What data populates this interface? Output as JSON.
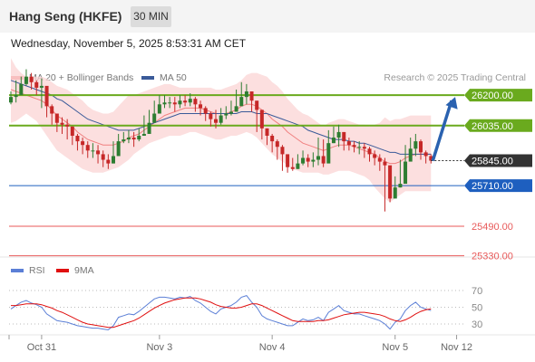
{
  "header": {
    "title": "Hang Seng (HKFE)",
    "timeframe": "30 MIN"
  },
  "datetime": "Wednesday, November 5, 2025 8:53:31 AM CET",
  "legend": {
    "ma20": {
      "label": "MA 20 + Bollinger Bands",
      "color": "#f08080"
    },
    "ma50": {
      "label": "MA 50",
      "color": "#3a5a99"
    }
  },
  "copyright": "Research © 2025 Trading Central",
  "rsi_legend": {
    "rsi": {
      "label": "RSI",
      "color": "#5b7fd6"
    },
    "ma9": {
      "label": "9MA",
      "color": "#e01010"
    }
  },
  "colors": {
    "up": "#2e7d32",
    "down": "#c62828",
    "resistance": "#6aaa1e",
    "pivot": "#1e5fbf",
    "support": "#e85a5a",
    "arrow": "#2a62b0",
    "last": "#333333"
  },
  "chart_data": [
    {
      "type": "candlestick",
      "title": "",
      "ylim": [
        25300,
        26500
      ],
      "xticks": [
        "Oct 31",
        "Nov 3",
        "Nov 4",
        "Nov 5",
        "Nov 12"
      ],
      "levels": [
        {
          "value": 26200,
          "label": "26200.00",
          "kind": "resistance"
        },
        {
          "value": 26035,
          "label": "26035.00",
          "kind": "resistance"
        },
        {
          "value": 25710,
          "label": "25710.00",
          "kind": "pivot"
        },
        {
          "value": 25490,
          "label": "25490.00",
          "kind": "support"
        },
        {
          "value": 25330,
          "label": "25330.00",
          "kind": "support"
        }
      ],
      "last_price": {
        "value": 25845,
        "label": "25845.00"
      },
      "target": {
        "from": 25845,
        "to": 26200
      },
      "close": [
        26190,
        26200,
        26260,
        26300,
        26270,
        26240,
        26250,
        26140,
        26100,
        26050,
        26040,
        26030,
        25980,
        25950,
        25930,
        25900,
        25900,
        25880,
        25850,
        25830,
        25870,
        25950,
        25960,
        25970,
        25960,
        25980,
        25990,
        26050,
        26100,
        26150,
        26160,
        26160,
        26150,
        26170,
        26160,
        26180,
        26150,
        26130,
        26100,
        26070,
        26050,
        26090,
        26100,
        26110,
        26140,
        26190,
        26220,
        26170,
        26120,
        26020,
        25980,
        25950,
        25920,
        25880,
        25810,
        25800,
        25830,
        25860,
        25840,
        25850,
        25870,
        25830,
        25940,
        25970,
        26000,
        25950,
        25930,
        25920,
        25920,
        25910,
        25880,
        25860,
        25840,
        25820,
        25640,
        25700,
        25720,
        25840,
        25910,
        25950,
        25890,
        25870,
        25845
      ],
      "high": [
        26220,
        26280,
        26300,
        26340,
        26320,
        26280,
        26290,
        26210,
        26150,
        26100,
        26080,
        26070,
        26020,
        25990,
        25970,
        25950,
        25940,
        25930,
        25900,
        25880,
        25950,
        25990,
        26000,
        26010,
        26000,
        26020,
        26090,
        26120,
        26170,
        26200,
        26200,
        26190,
        26190,
        26200,
        26200,
        26210,
        26190,
        26170,
        26140,
        26110,
        26120,
        26130,
        26140,
        26170,
        26230,
        26270,
        26260,
        26210,
        26160,
        26060,
        26020,
        25990,
        25960,
        25930,
        25860,
        25860,
        25880,
        25900,
        25880,
        25890,
        25970,
        25960,
        26010,
        26030,
        26040,
        26000,
        25970,
        25950,
        25950,
        25940,
        25920,
        25900,
        25880,
        25860,
        25760,
        25760,
        25850,
        25930,
        25970,
        25990,
        25960,
        25900,
        25880
      ],
      "low": [
        26150,
        26160,
        26220,
        26250,
        26230,
        26200,
        26130,
        26080,
        26040,
        26000,
        25990,
        25960,
        25930,
        25900,
        25880,
        25860,
        25860,
        25830,
        25810,
        25800,
        25830,
        25920,
        25940,
        25940,
        25920,
        25950,
        25980,
        26020,
        26070,
        26120,
        26130,
        26130,
        26110,
        26130,
        26140,
        26140,
        26110,
        26090,
        26060,
        26030,
        26020,
        26040,
        26070,
        26090,
        26110,
        26160,
        26150,
        26110,
        26000,
        25960,
        25930,
        25890,
        25850,
        25790,
        25780,
        25790,
        25800,
        25820,
        25810,
        25810,
        25820,
        25810,
        25920,
        25940,
        25920,
        25900,
        25900,
        25890,
        25880,
        25860,
        25840,
        25820,
        25790,
        25570,
        25620,
        25660,
        25700,
        25830,
        25890,
        25870,
        25850,
        25830,
        25830
      ],
      "bb_upper": [
        26400,
        26350,
        26320,
        26300,
        26300,
        26300,
        26300,
        26290,
        26270,
        26250,
        26240,
        26230,
        26210,
        26190,
        26170,
        26140,
        26120,
        26110,
        26100,
        26100,
        26110,
        26140,
        26170,
        26200,
        26200,
        26210,
        26220,
        26230,
        26240,
        26250,
        26260,
        26260,
        26250,
        26240,
        26240,
        26240,
        26240,
        26240,
        26240,
        26240,
        26230,
        26230,
        26240,
        26250,
        26260,
        26280,
        26310,
        26320,
        26320,
        26310,
        26300,
        26270,
        26250,
        26220,
        26180,
        26150,
        26120,
        26100,
        26090,
        26070,
        26050,
        26030,
        26050,
        26060,
        26070,
        26070,
        26060,
        26050,
        26040,
        26040,
        26030,
        26040,
        26050,
        26080,
        26060,
        26070,
        26070,
        26080,
        26090,
        26090,
        26090,
        26090,
        26090
      ],
      "bb_lower": [
        26050,
        26060,
        26080,
        26100,
        26080,
        26060,
        26020,
        25980,
        25940,
        25900,
        25880,
        25860,
        25840,
        25820,
        25800,
        25790,
        25780,
        25780,
        25780,
        25790,
        25800,
        25810,
        25830,
        25850,
        25880,
        25900,
        25920,
        25940,
        25950,
        25960,
        25970,
        25980,
        25980,
        25980,
        25990,
        26000,
        26000,
        25990,
        25980,
        25970,
        25960,
        25960,
        25970,
        25980,
        25980,
        25990,
        26000,
        25990,
        25970,
        25940,
        25910,
        25880,
        25860,
        25840,
        25820,
        25800,
        25790,
        25780,
        25780,
        25780,
        25780,
        25770,
        25770,
        25780,
        25790,
        25790,
        25790,
        25780,
        25770,
        25760,
        25740,
        25700,
        25670,
        25640,
        25620,
        25640,
        25660,
        25680,
        25680,
        25680,
        25680,
        25680,
        25680
      ],
      "ma20": [
        26230,
        26220,
        26210,
        26200,
        26190,
        26180,
        26170,
        26150,
        26120,
        26090,
        26070,
        26050,
        26030,
        26000,
        25980,
        25960,
        25950,
        25940,
        25930,
        25930,
        25930,
        25940,
        25950,
        25970,
        25980,
        25990,
        26010,
        26030,
        26050,
        26070,
        26090,
        26100,
        26110,
        26120,
        26130,
        26130,
        26130,
        26130,
        26120,
        26110,
        26100,
        26100,
        26100,
        26110,
        26120,
        26140,
        26150,
        26150,
        26140,
        26120,
        26100,
        26070,
        26050,
        26030,
        26000,
        25980,
        25960,
        25940,
        25930,
        25920,
        25910,
        25900,
        25910,
        25920,
        25930,
        25930,
        25930,
        25920,
        25910,
        25900,
        25890,
        25880,
        25860,
        25840,
        25830,
        25830,
        25840,
        25860,
        25870,
        25880,
        25880,
        25880,
        25880
      ],
      "ma50": [
        26280,
        26270,
        26260,
        26250,
        26240,
        26230,
        26220,
        26210,
        26200,
        26180,
        26170,
        26150,
        26130,
        26110,
        26090,
        26070,
        26060,
        26050,
        26040,
        26030,
        26020,
        26010,
        26010,
        26010,
        26010,
        26020,
        26030,
        26040,
        26050,
        26060,
        26070,
        26080,
        26090,
        26100,
        26100,
        26100,
        26100,
        26100,
        26100,
        26100,
        26100,
        26100,
        26100,
        26100,
        26100,
        26110,
        26110,
        26110,
        26100,
        26100,
        26100,
        26090,
        26080,
        26070,
        26060,
        26050,
        26040,
        26030,
        26010,
        26000,
        25990,
        25980,
        25970,
        25960,
        25960,
        25960,
        25950,
        25950,
        25940,
        25940,
        25930,
        25920,
        25910,
        25900,
        25890,
        25890,
        25880,
        25880,
        25880,
        25880,
        25880,
        25880,
        25880
      ]
    },
    {
      "type": "line",
      "title": "",
      "ylim": [
        20,
        80
      ],
      "yticks": [
        70,
        50,
        30
      ],
      "series": [
        {
          "name": "RSI",
          "values": [
            48,
            52,
            56,
            58,
            55,
            53,
            50,
            42,
            38,
            34,
            33,
            32,
            30,
            28,
            27,
            26,
            25,
            25,
            24,
            23,
            28,
            38,
            40,
            42,
            41,
            45,
            50,
            55,
            60,
            62,
            62,
            61,
            60,
            62,
            61,
            63,
            58,
            55,
            50,
            45,
            42,
            48,
            50,
            52,
            56,
            62,
            64,
            56,
            50,
            40,
            36,
            34,
            32,
            30,
            28,
            28,
            32,
            36,
            34,
            35,
            38,
            34,
            44,
            48,
            52,
            46,
            44,
            42,
            42,
            40,
            38,
            36,
            34,
            30,
            24,
            32,
            36,
            46,
            52,
            56,
            50,
            48,
            46
          ]
        },
        {
          "name": "9MA",
          "values": [
            52,
            52,
            53,
            54,
            54,
            54,
            53,
            51,
            49,
            46,
            44,
            41,
            38,
            35,
            32,
            30,
            29,
            28,
            27,
            26,
            26,
            28,
            30,
            32,
            34,
            37,
            41,
            45,
            49,
            52,
            55,
            57,
            59,
            60,
            61,
            61,
            61,
            60,
            58,
            56,
            53,
            51,
            50,
            49,
            49,
            50,
            52,
            54,
            54,
            52,
            49,
            46,
            43,
            40,
            37,
            34,
            33,
            33,
            33,
            33,
            34,
            34,
            35,
            37,
            39,
            41,
            42,
            43,
            44,
            44,
            43,
            42,
            41,
            39,
            36,
            34,
            33,
            35,
            38,
            42,
            45,
            47,
            48
          ]
        }
      ]
    }
  ]
}
